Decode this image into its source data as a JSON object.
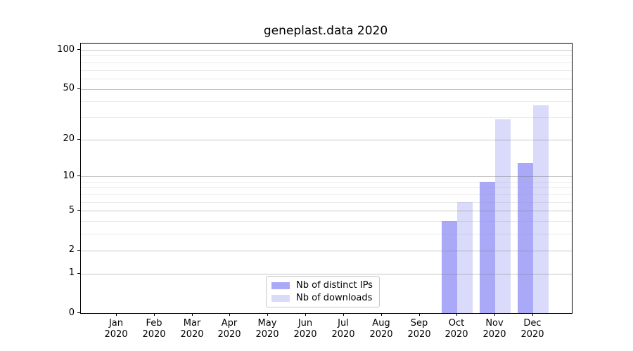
{
  "chart_data": {
    "type": "bar",
    "title": "geneplast.data 2020",
    "categories": [
      "Jan 2020",
      "Feb 2020",
      "Mar 2020",
      "Apr 2020",
      "May 2020",
      "Jun 2020",
      "Jul 2020",
      "Aug 2020",
      "Sep 2020",
      "Oct 2020",
      "Nov 2020",
      "Dec 2020"
    ],
    "category_months": [
      "Jan",
      "Feb",
      "Mar",
      "Apr",
      "May",
      "Jun",
      "Jul",
      "Aug",
      "Sep",
      "Oct",
      "Nov",
      "Dec"
    ],
    "category_year": "2020",
    "series": [
      {
        "name": "Nb of distinct IPs",
        "color": "#a9a9f8",
        "values": [
          0,
          0,
          0,
          0,
          0,
          0,
          0,
          0,
          0,
          4,
          9,
          13
        ]
      },
      {
        "name": "Nb of downloads",
        "color": "#dadafa",
        "values": [
          0,
          0,
          0,
          0,
          0,
          0,
          0,
          0,
          0,
          6,
          29,
          37
        ]
      }
    ],
    "yscale": "log1p",
    "ylim": [
      0,
      100
    ],
    "y_ticks": [
      0,
      1,
      2,
      5,
      10,
      20,
      50,
      100
    ],
    "y_minor_gridlines": [
      3,
      4,
      6,
      7,
      8,
      9,
      30,
      40,
      60,
      70,
      80,
      90
    ],
    "grid": "horizontal",
    "legend_position": "lower center",
    "xlabel": "",
    "ylabel": ""
  }
}
